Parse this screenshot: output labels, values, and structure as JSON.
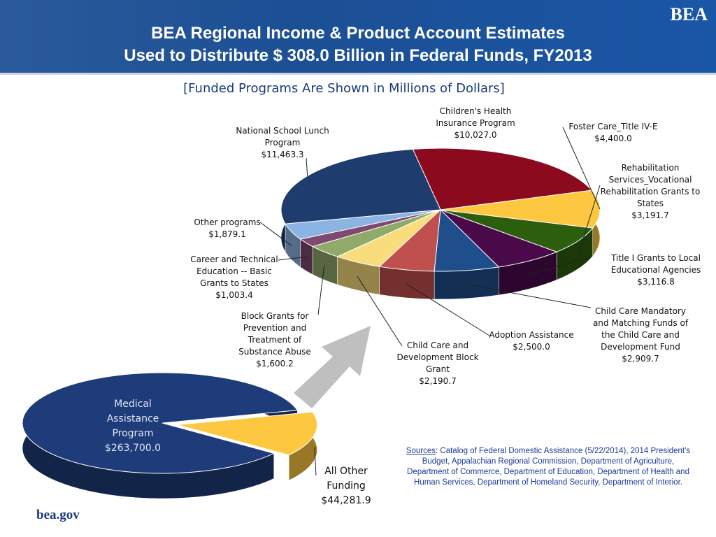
{
  "header": {
    "title_lines": [
      "BEA Regional Income & Product Account Estimates",
      "Used to Distribute $ 308.0 Billion in Federal Funds, FY2013"
    ],
    "logo": "BEA"
  },
  "subtitle": "[Funded Programs Are Shown in Millions of Dollars]",
  "sources": {
    "label": "Sources",
    "text": ": Catalog of Federal Domestic Assistance (5/22/2014), 2014 President’s Budget, Appalachian Regional Commission, Department of Agriculture, Department of Commerce, Department of Education, Department of Health and Human Services, Department of Homeland Security, Department of Interior."
  },
  "footer": "bea.gov",
  "chart_data": [
    {
      "type": "pie",
      "categories": [
        "Children's Health Insurance Program",
        "Foster Care_Title IV-E",
        "Rehabilitation Services_Vocational Rehabilitation Grants to States",
        "Title I Grants to Local Educational Agencies",
        "Child Care Mandatory and Matching Funds of the Child Care and Development Fund",
        "Adoption Assistance",
        "Child Care and Development Block Grant",
        "Block Grants for Prevention and Treatment of Substance Abuse",
        "Career and Technical Education -- Basic Grants to States",
        "Other programs",
        "National School Lunch Program"
      ],
      "values": [
        10027.0,
        4400.0,
        3191.7,
        3116.8,
        2909.7,
        2500.0,
        2190.7,
        1600.2,
        1003.4,
        1879.1,
        11463.3
      ],
      "value_labels": [
        "$10,027.0",
        "$4,400.0",
        "$3,191.7",
        "$3,116.8",
        "$2,909.7",
        "$2,500.0",
        "$2,190.7",
        "$1,600.2",
        "$1,003.4",
        "$1,879.1",
        "$11,463.3"
      ],
      "colors": [
        "#8b0a1e",
        "#fdc840",
        "#2c5e0e",
        "#4a0a4a",
        "#1f4e8c",
        "#c0504d",
        "#f9dc7c",
        "#8faa6a",
        "#7f4a70",
        "#8cb4e2",
        "#1f3c6e"
      ]
    },
    {
      "type": "pie",
      "categories": [
        "Medical Assistance Program",
        "All Other Funding"
      ],
      "values": [
        263700.0,
        44281.9
      ],
      "value_labels": [
        "$263,700.0",
        "$44,281.9"
      ],
      "colors": [
        "#1f3c7a",
        "#fdc840"
      ]
    }
  ]
}
